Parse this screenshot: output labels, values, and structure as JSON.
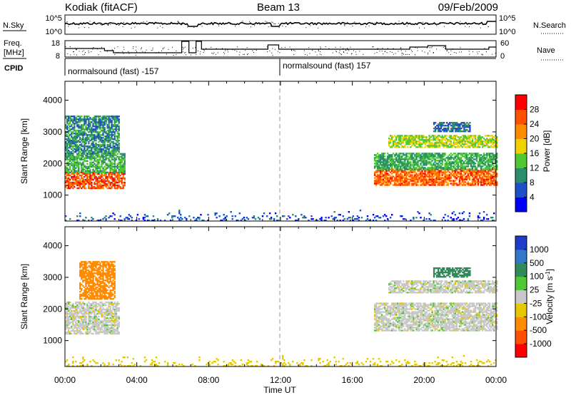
{
  "header": {
    "station": "Kodiak (fitACF)",
    "beam": "Beam 13",
    "date": "09/Feb/2009"
  },
  "top_panels": {
    "nsky_label": "N.Sky",
    "nsky_ticks": [
      "10^5",
      "10^0"
    ],
    "nsearch_label": "N.Search",
    "nsearch_ticks": [
      "10^5",
      "10^0"
    ],
    "freq_label_1": "Freq.",
    "freq_label_2": "[MHz]",
    "freq_ticks": [
      "18",
      "8"
    ],
    "nave_label": "Nave",
    "nave_ticks": [
      "60",
      "0"
    ],
    "cpid_label": "CPID",
    "cpid_segments": [
      "normalsound (fast) -157",
      "normalsound (fast) 157"
    ]
  },
  "axes": {
    "ylabel": "Slant Range [km]",
    "y_ticks": [
      "1000",
      "2000",
      "3000",
      "4000"
    ],
    "x_ticks": [
      "00:00",
      "04:00",
      "08:00",
      "12:00",
      "16:00",
      "20:00",
      "00:00"
    ],
    "xlabel": "Time UT"
  },
  "power_colorbar": {
    "label": "Power [dB]",
    "ticks": [
      "4",
      "8",
      "12",
      "16",
      "20",
      "24",
      "28"
    ],
    "colors": [
      "#0000ff",
      "#1e50c8",
      "#2d8c6e",
      "#50c832",
      "#f0d200",
      "#ff8c00",
      "#ff5000",
      "#ff0000"
    ]
  },
  "velocity_colorbar": {
    "label": "Velocity [m s^-1]",
    "ticks": [
      "1000",
      "500",
      "100",
      "25",
      "-25",
      "-100",
      "-500",
      "-1000"
    ],
    "colors": [
      "#1e3cc8",
      "#3278c8",
      "#2d8c5a",
      "#50c832",
      "#c8c8c8",
      "#e6c800",
      "#ff8c00",
      "#ff5000",
      "#ff0000"
    ]
  },
  "chart_data": [
    {
      "type": "heatmap",
      "title": "Power",
      "xlabel": "Time UT",
      "ylabel": "Slant Range [km]",
      "xlim": [
        0,
        24
      ],
      "ylim": [
        180,
        4600
      ],
      "units": "dB",
      "regions": [
        {
          "t": [
            0.0,
            3.3
          ],
          "r": [
            1200,
            1700
          ],
          "value": 26
        },
        {
          "t": [
            0.0,
            3.3
          ],
          "r": [
            1700,
            2300
          ],
          "value": 12
        },
        {
          "t": [
            0.0,
            3.0
          ],
          "r": [
            2300,
            3500
          ],
          "value": 10
        },
        {
          "t": [
            17.2,
            24.0
          ],
          "r": [
            1300,
            1800
          ],
          "value": 25
        },
        {
          "t": [
            17.2,
            24.0
          ],
          "r": [
            1800,
            2300
          ],
          "value": 12
        },
        {
          "t": [
            18.0,
            24.0
          ],
          "r": [
            2500,
            2900
          ],
          "value": 16
        },
        {
          "t": [
            20.5,
            22.5
          ],
          "r": [
            3000,
            3300
          ],
          "value": 8
        },
        {
          "t": [
            0.0,
            24.0
          ],
          "r": [
            180,
            500
          ],
          "value": 6
        }
      ]
    },
    {
      "type": "heatmap",
      "title": "Velocity",
      "xlabel": "Time UT",
      "ylabel": "Slant Range [km]",
      "xlim": [
        0,
        24
      ],
      "ylim": [
        180,
        4600
      ],
      "units": "m s^-1",
      "regions": [
        {
          "t": [
            0.0,
            3.0
          ],
          "r": [
            1200,
            2200
          ],
          "value": 0
        },
        {
          "t": [
            0.8,
            2.8
          ],
          "r": [
            2300,
            3500
          ],
          "value": -150
        },
        {
          "t": [
            17.2,
            24.0
          ],
          "r": [
            1300,
            2200
          ],
          "value": 0
        },
        {
          "t": [
            18.0,
            24.0
          ],
          "r": [
            2500,
            2900
          ],
          "value": 0
        },
        {
          "t": [
            20.5,
            22.5
          ],
          "r": [
            3000,
            3300
          ],
          "value": 150
        },
        {
          "t": [
            0.0,
            24.0
          ],
          "r": [
            180,
            500
          ],
          "value": -60
        }
      ]
    }
  ]
}
